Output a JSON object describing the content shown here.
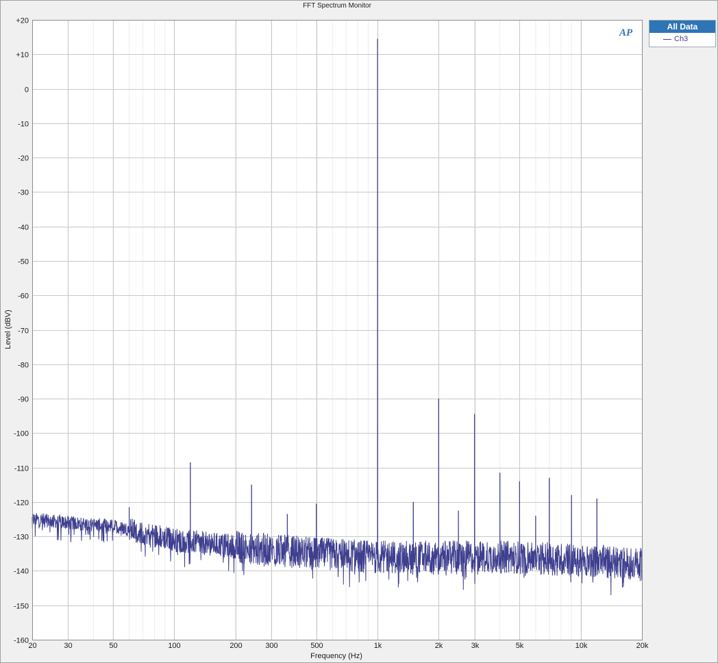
{
  "window": {
    "title": "FFT Spectrum Monitor"
  },
  "logo": {
    "text": "AP"
  },
  "legend": {
    "header": "All Data",
    "items": [
      {
        "label": "Ch3",
        "color": "#3f3f8f"
      }
    ]
  },
  "chart_data": {
    "type": "line",
    "title": "FFT Spectrum Monitor",
    "xlabel": "Frequency (Hz)",
    "ylabel": "Level (dBV)",
    "x_scale": "log",
    "xlim": [
      20,
      20000
    ],
    "ylim": [
      -160,
      20
    ],
    "grid": true,
    "legend_position": "right",
    "x_ticks": [
      {
        "value": 20,
        "label": "20"
      },
      {
        "value": 30,
        "label": "30"
      },
      {
        "value": 50,
        "label": "50"
      },
      {
        "value": 100,
        "label": "100"
      },
      {
        "value": 200,
        "label": "200"
      },
      {
        "value": 300,
        "label": "300"
      },
      {
        "value": 500,
        "label": "500"
      },
      {
        "value": 1000,
        "label": "1k"
      },
      {
        "value": 2000,
        "label": "2k"
      },
      {
        "value": 3000,
        "label": "3k"
      },
      {
        "value": 5000,
        "label": "5k"
      },
      {
        "value": 10000,
        "label": "10k"
      },
      {
        "value": 20000,
        "label": "20k"
      }
    ],
    "y_ticks": [
      {
        "value": 20,
        "label": "+20"
      },
      {
        "value": 10,
        "label": "+10"
      },
      {
        "value": 0,
        "label": "0"
      },
      {
        "value": -10,
        "label": "-10"
      },
      {
        "value": -20,
        "label": "-20"
      },
      {
        "value": -30,
        "label": "-30"
      },
      {
        "value": -40,
        "label": "-40"
      },
      {
        "value": -50,
        "label": "-50"
      },
      {
        "value": -60,
        "label": "-60"
      },
      {
        "value": -70,
        "label": "-70"
      },
      {
        "value": -80,
        "label": "-80"
      },
      {
        "value": -90,
        "label": "-90"
      },
      {
        "value": -100,
        "label": "-100"
      },
      {
        "value": -110,
        "label": "-110"
      },
      {
        "value": -120,
        "label": "-120"
      },
      {
        "value": -130,
        "label": "-130"
      },
      {
        "value": -140,
        "label": "-140"
      },
      {
        "value": -150,
        "label": "-150"
      },
      {
        "value": -160,
        "label": "-160"
      }
    ],
    "series": [
      {
        "name": "Ch3",
        "color": "#3f3f8f",
        "noise_floor": {
          "x": [
            20,
            30,
            50,
            60,
            100,
            200,
            300,
            500,
            1000,
            2000,
            5000,
            10000,
            20000
          ],
          "y": [
            -125,
            -126,
            -127,
            -128,
            -131,
            -133,
            -134,
            -135,
            -136,
            -136,
            -136,
            -137,
            -138
          ]
        },
        "peaks": [
          {
            "x": 60,
            "y": -121.5
          },
          {
            "x": 120,
            "y": -108.5
          },
          {
            "x": 240,
            "y": -115
          },
          {
            "x": 360,
            "y": -123.5
          },
          {
            "x": 500,
            "y": -120.5
          },
          {
            "x": 1000,
            "y": 14.5
          },
          {
            "x": 1500,
            "y": -120
          },
          {
            "x": 2000,
            "y": -90
          },
          {
            "x": 2500,
            "y": -122.5
          },
          {
            "x": 3000,
            "y": -94.5
          },
          {
            "x": 4000,
            "y": -111.5
          },
          {
            "x": 5000,
            "y": -114
          },
          {
            "x": 6000,
            "y": -124
          },
          {
            "x": 7000,
            "y": -113
          },
          {
            "x": 9000,
            "y": -118
          },
          {
            "x": 12000,
            "y": -119
          }
        ]
      }
    ]
  }
}
